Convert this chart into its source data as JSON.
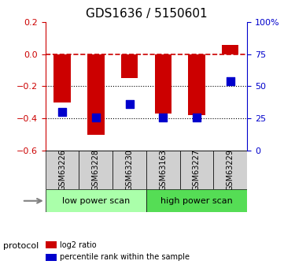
{
  "title": "GDS1636 / 5150601",
  "samples": [
    "GSM63226",
    "GSM63228",
    "GSM63230",
    "GSM63163",
    "GSM63227",
    "GSM63229"
  ],
  "log2_ratio": [
    -0.3,
    -0.5,
    -0.15,
    -0.37,
    -0.38,
    0.055
  ],
  "percentile_rank": [
    30,
    26,
    36,
    26,
    26,
    54
  ],
  "bar_color": "#cc0000",
  "dot_color": "#0000cc",
  "ylim_left": [
    -0.6,
    0.2
  ],
  "ylim_right": [
    0,
    100
  ],
  "right_ticks": [
    0,
    25,
    50,
    75,
    100
  ],
  "right_tick_labels": [
    "0",
    "25",
    "50",
    "75",
    "100%"
  ],
  "left_ticks": [
    -0.6,
    -0.4,
    -0.2,
    0.0,
    0.2
  ],
  "hline_dashed": 0.0,
  "hlines_dotted": [
    -0.2,
    -0.4
  ],
  "protocol_groups": [
    {
      "label": "low power scan",
      "span": [
        0,
        3
      ],
      "color": "#aaffaa"
    },
    {
      "label": "high power scan",
      "span": [
        3,
        6
      ],
      "color": "#55dd55"
    }
  ],
  "legend_items": [
    {
      "color": "#cc0000",
      "label": "log2 ratio"
    },
    {
      "color": "#0000cc",
      "label": "percentile rank within the sample"
    }
  ],
  "protocol_label": "protocol",
  "bar_width": 0.5
}
